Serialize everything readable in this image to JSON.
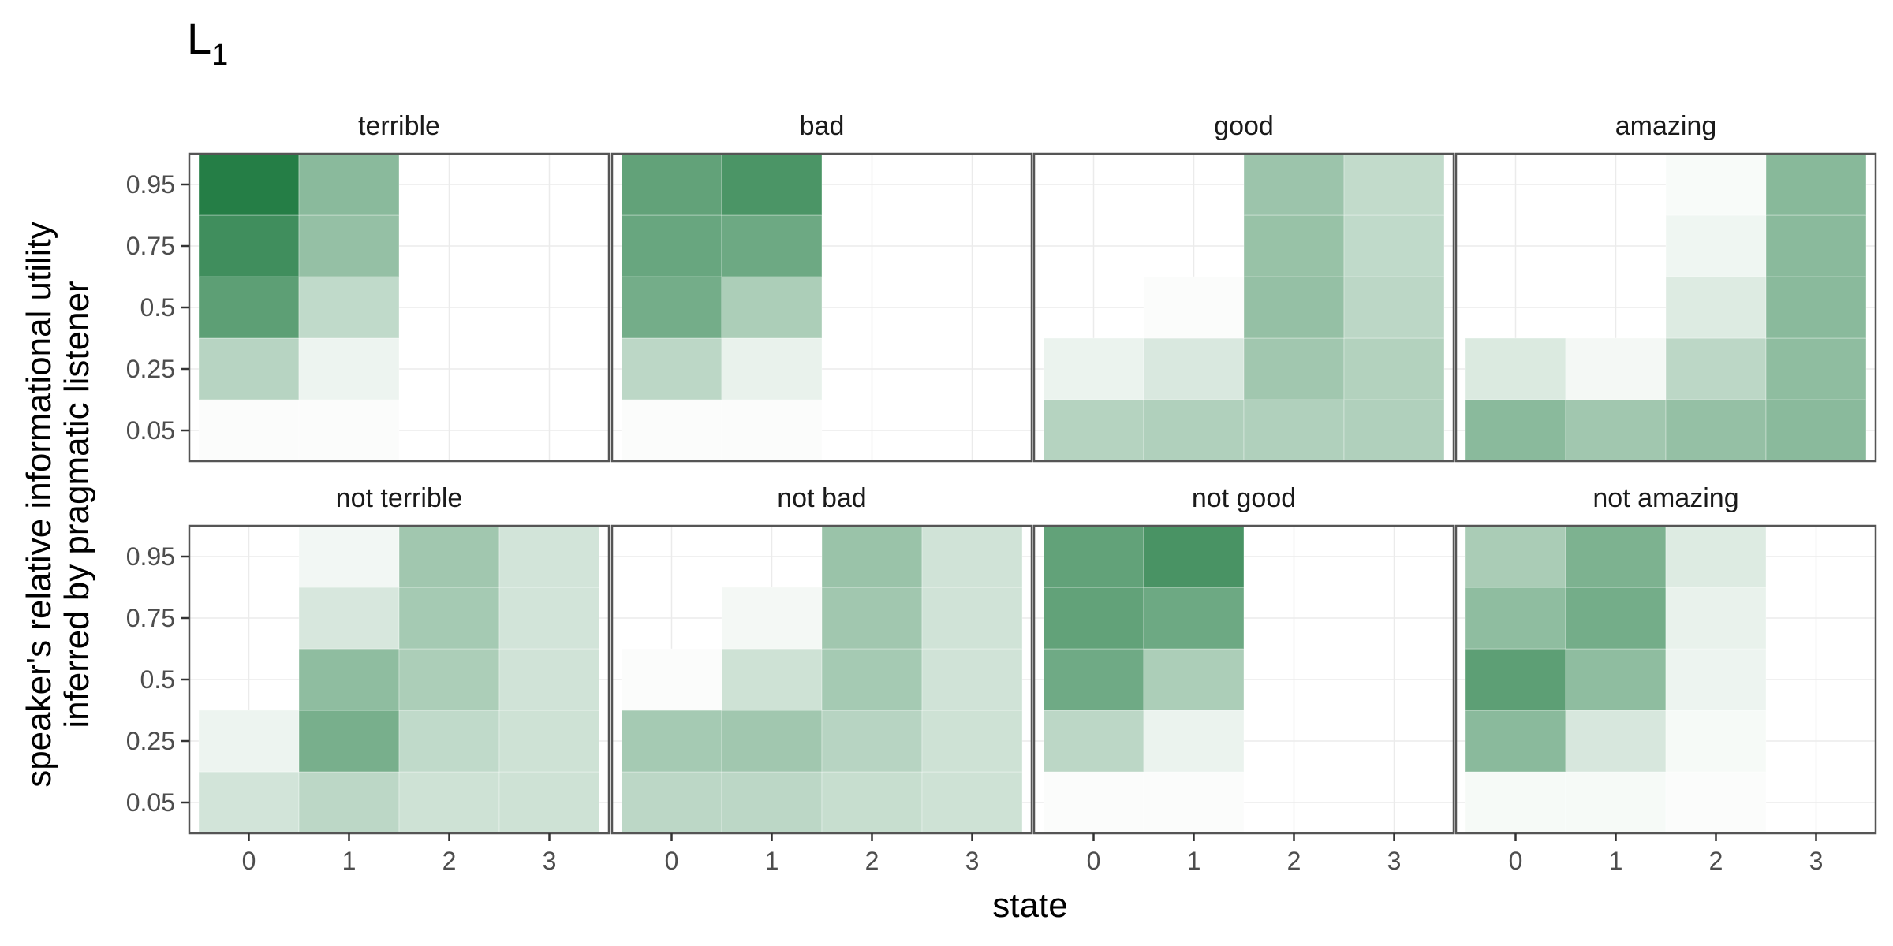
{
  "chart_data": {
    "type": "heatmap",
    "title": "L",
    "title_subscript": "1",
    "xlabel": "state",
    "ylabel_lines": [
      "speaker's relative informational utility",
      "inferred by pragmatic listener"
    ],
    "x_categories": [
      "0",
      "1",
      "2",
      "3"
    ],
    "y_categories": [
      "0.05",
      "0.25",
      "0.5",
      "0.75",
      "0.95"
    ],
    "color_low": "#ffffff",
    "color_high": "#1e7a40",
    "grid": true,
    "facets": [
      {
        "label": "terrible",
        "values": [
          [
            0.02,
            0.02,
            0,
            0
          ],
          [
            0.32,
            0.08,
            0,
            0
          ],
          [
            0.72,
            0.28,
            0,
            0
          ],
          [
            0.85,
            0.47,
            0,
            0
          ],
          [
            0.97,
            0.52,
            0,
            0
          ]
        ]
      },
      {
        "label": "bad",
        "values": [
          [
            0.02,
            0.02,
            0,
            0
          ],
          [
            0.3,
            0.1,
            0,
            0
          ],
          [
            0.62,
            0.37,
            0,
            0
          ],
          [
            0.67,
            0.65,
            0,
            0
          ],
          [
            0.7,
            0.8,
            0,
            0
          ]
        ]
      },
      {
        "label": "good",
        "values": [
          [
            0.33,
            0.35,
            0.35,
            0.35
          ],
          [
            0.09,
            0.17,
            0.42,
            0.34
          ],
          [
            0,
            0.02,
            0.47,
            0.3
          ],
          [
            0,
            0,
            0.46,
            0.28
          ],
          [
            0,
            0,
            0.44,
            0.27
          ]
        ]
      },
      {
        "label": "amazing",
        "values": [
          [
            0.52,
            0.42,
            0.47,
            0.52
          ],
          [
            0.16,
            0.05,
            0.3,
            0.5
          ],
          [
            0,
            0,
            0.15,
            0.52
          ],
          [
            0,
            0,
            0.07,
            0.52
          ],
          [
            0,
            0,
            0.03,
            0.53
          ]
        ]
      },
      {
        "label": "not terrible",
        "values": [
          [
            0.2,
            0.3,
            0.22,
            0.22
          ],
          [
            0.08,
            0.6,
            0.28,
            0.22
          ],
          [
            0,
            0.5,
            0.37,
            0.21
          ],
          [
            0,
            0.18,
            0.4,
            0.2
          ],
          [
            0,
            0.06,
            0.42,
            0.2
          ]
        ]
      },
      {
        "label": "not bad",
        "values": [
          [
            0.3,
            0.3,
            0.25,
            0.22
          ],
          [
            0.4,
            0.42,
            0.32,
            0.22
          ],
          [
            0.02,
            0.22,
            0.4,
            0.21
          ],
          [
            0,
            0.05,
            0.42,
            0.21
          ],
          [
            0,
            0,
            0.45,
            0.21
          ]
        ]
      },
      {
        "label": "not good",
        "values": [
          [
            0.02,
            0.02,
            0,
            0
          ],
          [
            0.3,
            0.09,
            0,
            0
          ],
          [
            0.64,
            0.37,
            0,
            0
          ],
          [
            0.7,
            0.65,
            0,
            0
          ],
          [
            0.7,
            0.81,
            0,
            0
          ]
        ]
      },
      {
        "label": "not amazing",
        "values": [
          [
            0.04,
            0.04,
            0.02,
            0
          ],
          [
            0.52,
            0.18,
            0.04,
            0
          ],
          [
            0.72,
            0.5,
            0.08,
            0
          ],
          [
            0.5,
            0.62,
            0.1,
            0
          ],
          [
            0.38,
            0.58,
            0.15,
            0
          ]
        ]
      }
    ]
  }
}
